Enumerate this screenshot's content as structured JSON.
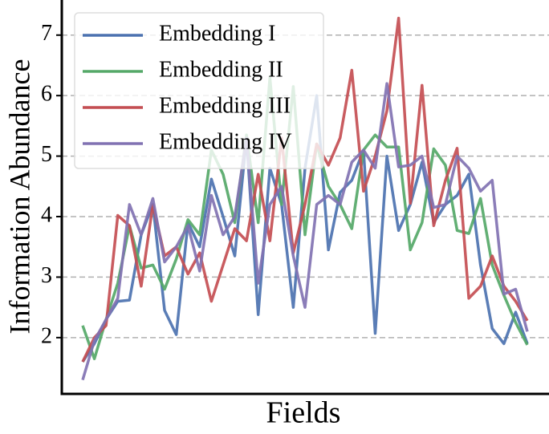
{
  "chart_data": {
    "type": "line",
    "xlabel": "Fields",
    "ylabel": "Information Abundance",
    "categories": [
      null,
      null,
      null,
      null,
      null,
      null,
      null,
      null,
      null,
      null,
      null,
      null,
      null,
      null,
      null,
      null,
      null,
      null,
      null,
      null,
      null,
      null,
      null,
      null,
      null,
      null,
      null,
      null,
      null,
      null,
      null,
      null,
      null,
      null,
      null,
      null,
      null,
      null,
      null
    ],
    "series": [
      {
        "name": "Embedding I",
        "color": "#4c72b0",
        "values": [
          1.6,
          1.9,
          2.3,
          2.6,
          2.62,
          3.7,
          4.2,
          2.45,
          2.05,
          3.9,
          3.5,
          4.62,
          4.0,
          3.35,
          5.3,
          2.38,
          4.8,
          4.2,
          2.5,
          4.8,
          6.0,
          3.45,
          4.4,
          4.6,
          5.1,
          2.07,
          5.0,
          3.77,
          4.2,
          4.9,
          3.9,
          4.2,
          4.35,
          4.7,
          3.2,
          2.15,
          1.9,
          2.42,
          1.9
        ]
      },
      {
        "name": "Embedding II",
        "color": "#55a868",
        "values": [
          2.2,
          1.65,
          2.3,
          2.9,
          3.85,
          3.15,
          3.2,
          2.8,
          3.3,
          3.95,
          3.7,
          5.1,
          4.7,
          3.9,
          5.35,
          3.9,
          6.3,
          4.2,
          6.15,
          3.7,
          5.2,
          4.5,
          4.2,
          3.8,
          5.1,
          5.35,
          5.15,
          5.15,
          3.45,
          3.9,
          5.12,
          4.85,
          3.77,
          3.72,
          4.3,
          3.2,
          2.7,
          2.25,
          1.88
        ]
      },
      {
        "name": "Embedding III",
        "color": "#c44e52",
        "values": [
          1.6,
          2.0,
          2.2,
          4.02,
          3.85,
          2.85,
          4.2,
          3.35,
          3.5,
          3.05,
          3.4,
          2.6,
          3.2,
          3.8,
          3.6,
          4.7,
          3.6,
          5.3,
          3.4,
          4.2,
          5.2,
          4.85,
          5.3,
          6.42,
          4.42,
          5.0,
          5.75,
          7.28,
          4.22,
          6.17,
          3.85,
          4.6,
          5.13,
          2.65,
          2.85,
          3.35,
          2.85,
          2.6,
          2.28
        ]
      },
      {
        "name": "Embedding IV",
        "color": "#8172b2",
        "values": [
          1.3,
          1.95,
          2.3,
          2.65,
          4.2,
          3.7,
          4.3,
          3.25,
          3.5,
          3.85,
          3.1,
          4.35,
          3.7,
          4.0,
          5.3,
          2.9,
          4.2,
          4.5,
          3.35,
          2.5,
          4.2,
          4.35,
          4.2,
          4.9,
          5.1,
          4.8,
          6.2,
          4.82,
          4.85,
          5.0,
          4.15,
          4.2,
          5.0,
          4.8,
          4.42,
          4.6,
          2.72,
          2.8,
          2.1
        ]
      }
    ],
    "ylim": [
      1.07,
      7.58
    ],
    "yticks": [
      2,
      3,
      4,
      5,
      6,
      7
    ],
    "grid": true,
    "legend": "upper left"
  }
}
